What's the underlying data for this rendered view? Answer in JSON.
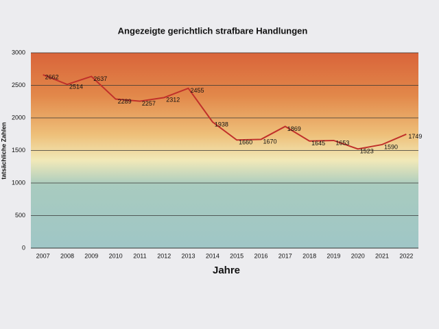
{
  "chart_data": {
    "type": "line",
    "title": "Angezeigte gerichtlich strafbare Handlungen",
    "x_label": "Jahre",
    "y_label": "tatsächliche Zahlen",
    "categories": [
      "2007",
      "2008",
      "2009",
      "2010",
      "2011",
      "2012",
      "2013",
      "2014",
      "2015",
      "2016",
      "2017",
      "2018",
      "2019",
      "2020",
      "2021",
      "2022"
    ],
    "values": [
      2662,
      2514,
      2637,
      2289,
      2257,
      2312,
      2455,
      1938,
      1660,
      1670,
      1869,
      1645,
      1653,
      1523,
      1590,
      1749
    ],
    "color": "#c0302a",
    "ylim": [
      0,
      3000
    ],
    "yticks": [
      0,
      500,
      1000,
      1500,
      2000,
      2500,
      3000
    ],
    "grid": true,
    "data_labels": true
  }
}
